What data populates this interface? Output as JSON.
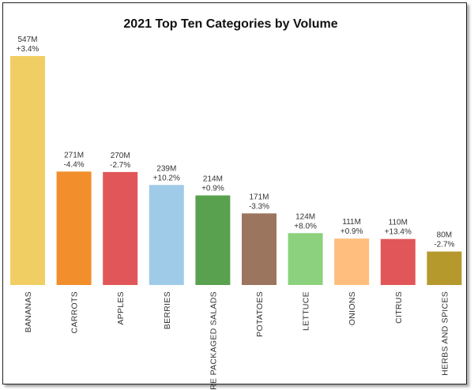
{
  "chart_data": {
    "type": "bar",
    "title": "2021 Top Ten Categories by Volume",
    "xlabel": "",
    "ylabel": "",
    "ylim": [
      0,
      600
    ],
    "grid": false,
    "categories": [
      "BANANAS",
      "CARROTS",
      "APPLES",
      "BERRIES",
      "PRE PACKAGED SALADS",
      "POTATOES",
      "LETTUCE",
      "ONIONS",
      "CITRUS",
      "HERBS AND SPICES"
    ],
    "values": [
      547,
      271,
      270,
      239,
      214,
      171,
      124,
      111,
      110,
      80
    ],
    "value_labels": [
      "547M",
      "271M",
      "270M",
      "239M",
      "214M",
      "171M",
      "124M",
      "111M",
      "110M",
      "80M"
    ],
    "change_labels": [
      "+3.4%",
      "-4.4%",
      "-2.7%",
      "+10.2%",
      "+0.9%",
      "-3.3%",
      "+8.0%",
      "+0.9%",
      "+13.4%",
      "-2.7%"
    ],
    "colors": [
      "#F1CE63",
      "#F28E2B",
      "#E15759",
      "#A0CBE8",
      "#59A14F",
      "#9C755F",
      "#8CD17D",
      "#FFBE7D",
      "#E15759",
      "#B6992D"
    ]
  }
}
